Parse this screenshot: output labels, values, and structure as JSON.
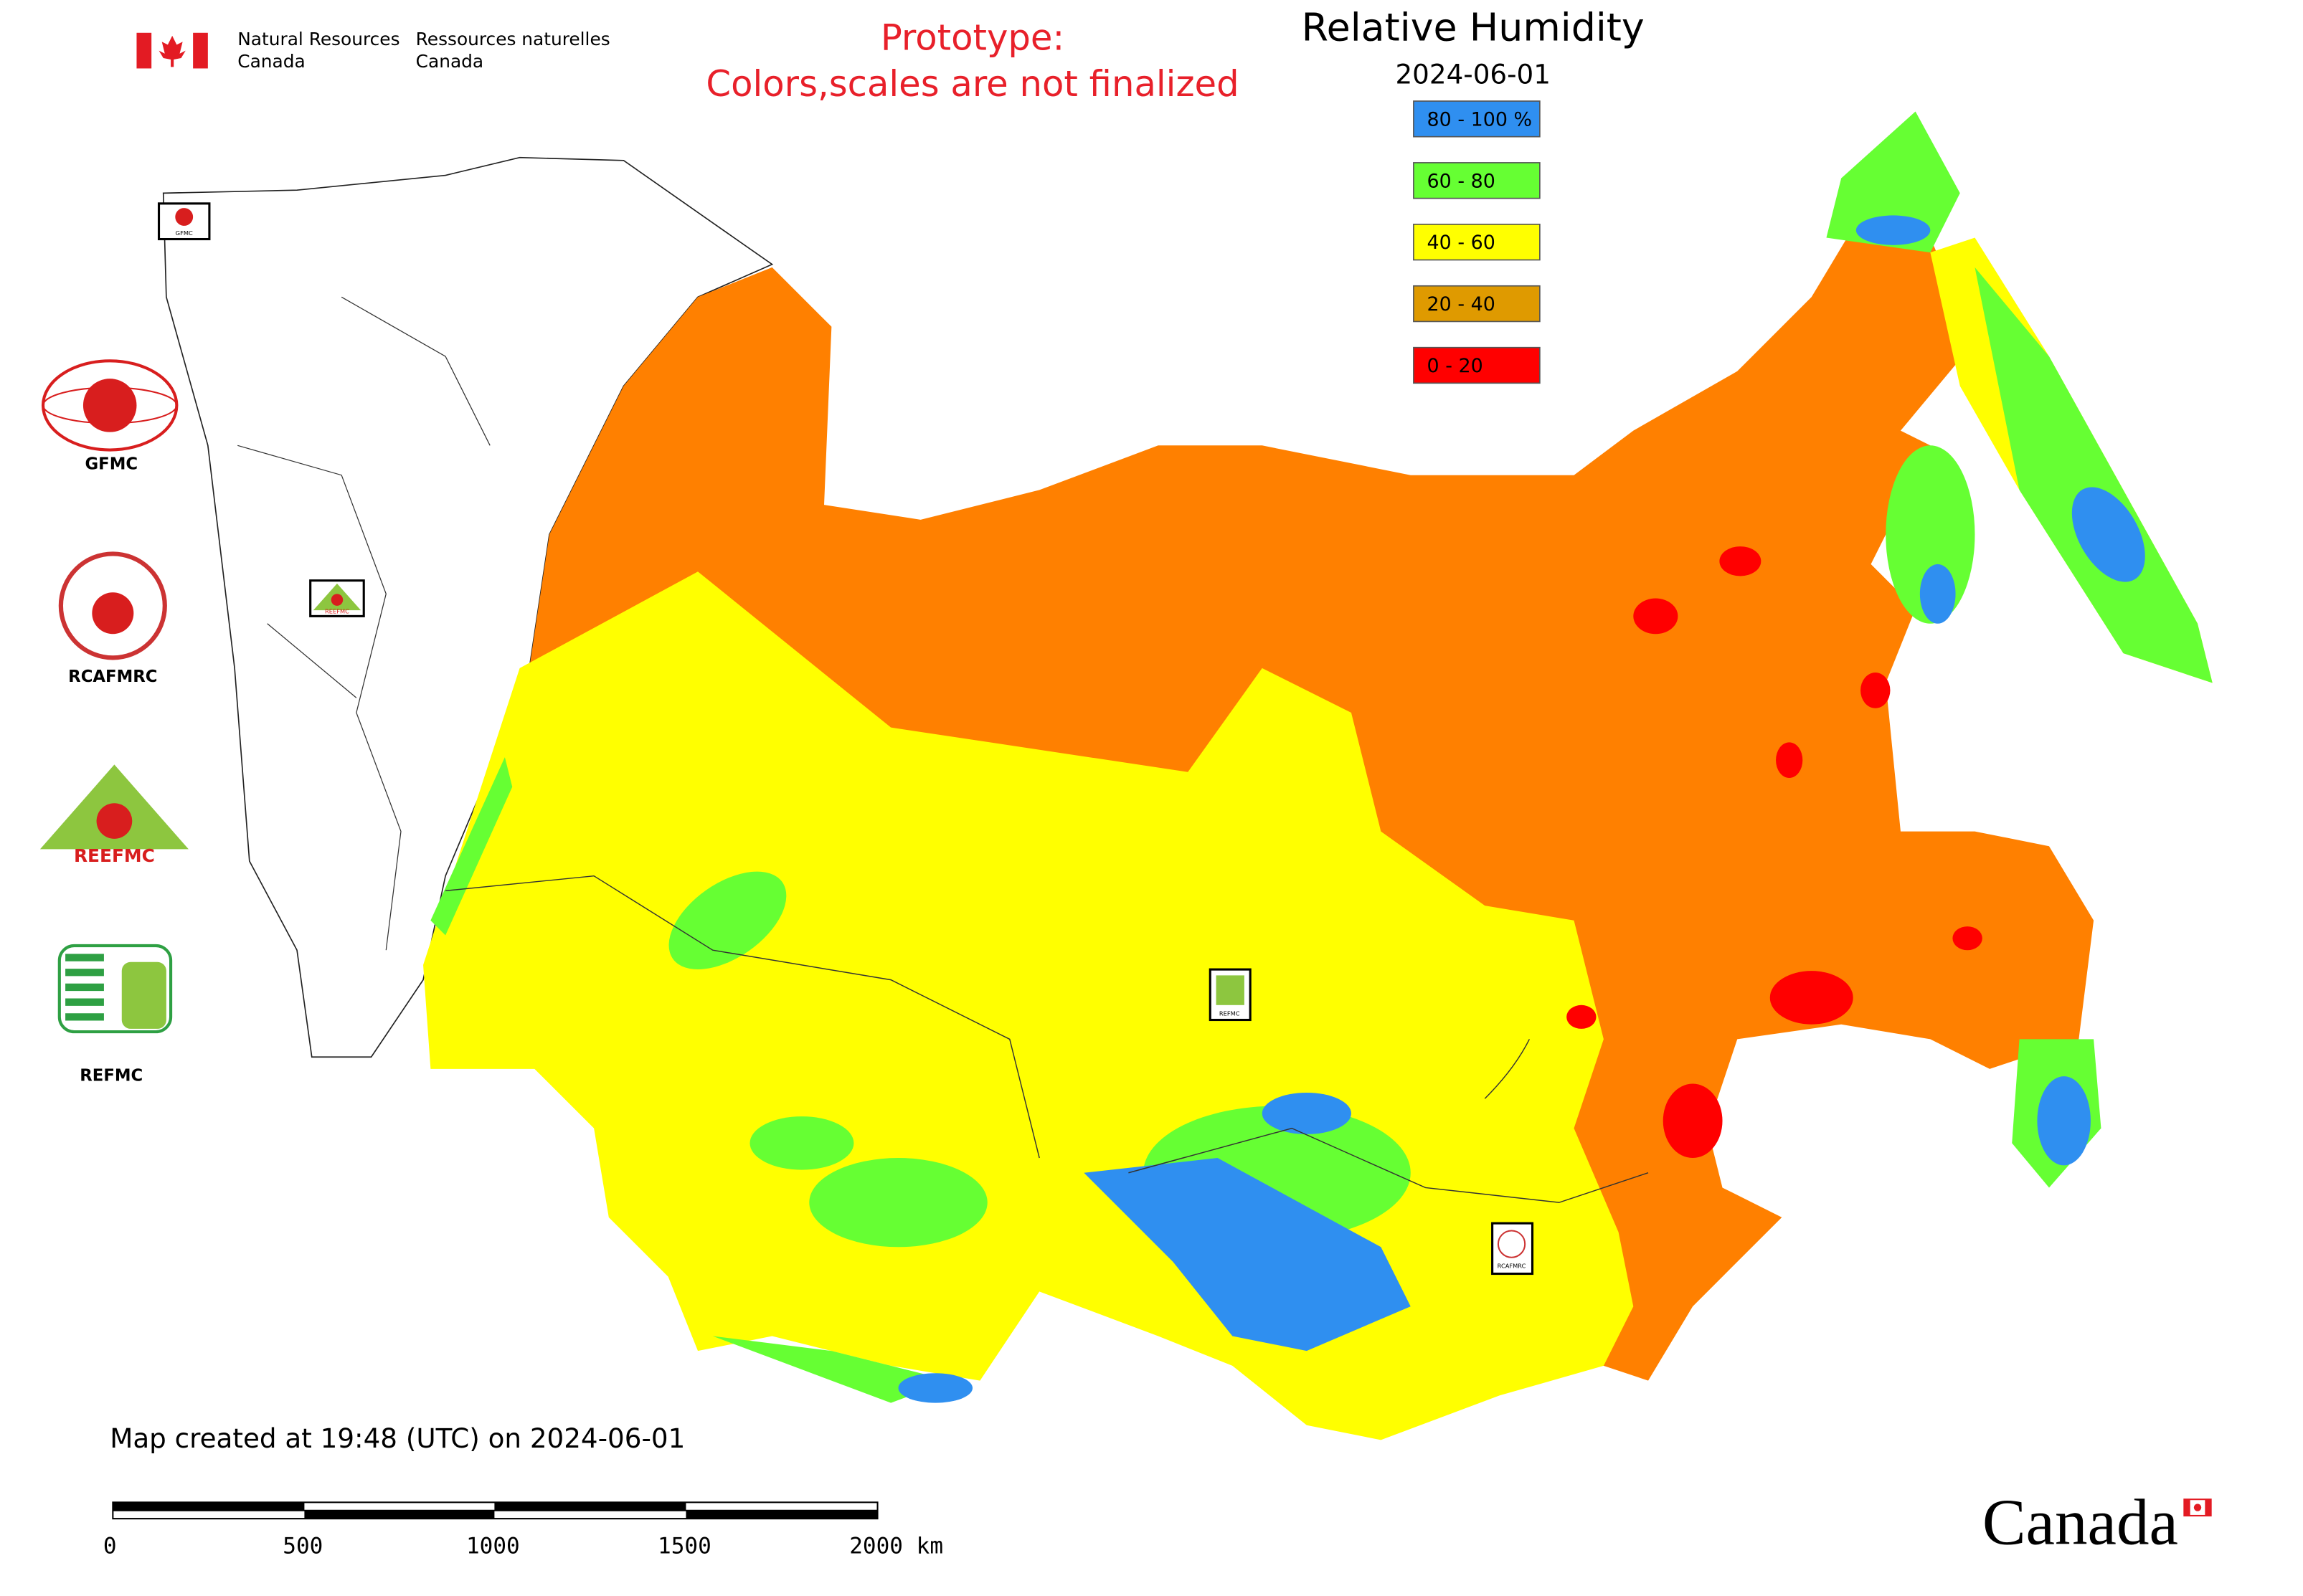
{
  "header": {
    "agency_en": [
      "Natural Resources",
      "Canada"
    ],
    "agency_fr": [
      "Ressources naturelles",
      "Canada"
    ]
  },
  "notice": [
    "Prototype:",
    "Colors,scales are not finalized"
  ],
  "title": "Relative Humidity",
  "date": "2024-06-01",
  "legend": [
    {
      "label": "80 - 100 %",
      "color": "#2f8ff0"
    },
    {
      "label": "60 - 80",
      "color": "#66ff33"
    },
    {
      "label": "40 - 60",
      "color": "#ffff00"
    },
    {
      "label": "20 - 40",
      "color": "#df9a00"
    },
    {
      "label": "0 - 20",
      "color": "#ff0000"
    }
  ],
  "logos": [
    "GFMC",
    "RCAFMRC",
    "REEFMC",
    "REFMC"
  ],
  "footer": "Map created at 19:48 (UTC) on 2024-06-01",
  "scale_bar": [
    "0",
    "500",
    "1000",
    "1500",
    "2000 km"
  ],
  "wordmark": "Canada"
}
